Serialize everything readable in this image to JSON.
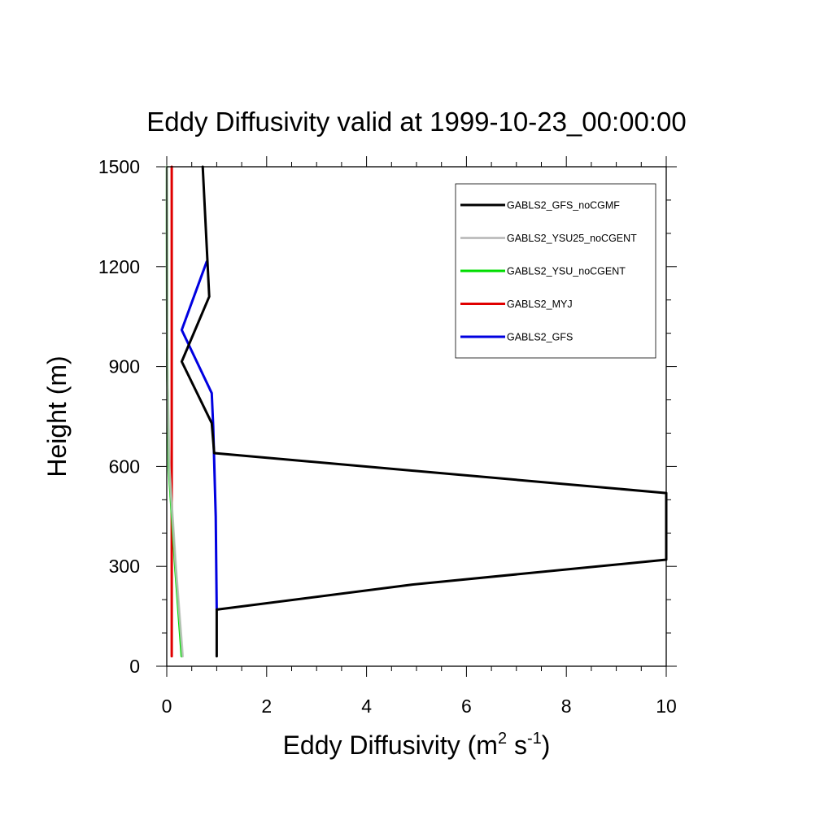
{
  "chart_data": {
    "type": "line",
    "title": "Eddy Diffusivity valid at 1999-10-23_00:00:00",
    "xlabel": {
      "base": "Eddy Diffusivity (m",
      "sup1": "2",
      "mid": " s",
      "sup2": "-1",
      "end": ")"
    },
    "ylabel": "Height (m)",
    "xlim": [
      0,
      10
    ],
    "ylim": [
      0,
      1500
    ],
    "x_ticks": [
      "0",
      "2",
      "4",
      "6",
      "8",
      "10"
    ],
    "x_tick_values": [
      0,
      2,
      4,
      6,
      8,
      10
    ],
    "y_ticks": [
      "0",
      "300",
      "600",
      "900",
      "1200",
      "1500"
    ],
    "y_tick_values": [
      0,
      300,
      600,
      900,
      1200,
      1500
    ],
    "legend_position": "top-right",
    "series": [
      {
        "name": "GABLS2_GFS_noCGMF",
        "color": "#000000",
        "points": [
          [
            1.0,
            30
          ],
          [
            1.0,
            170
          ],
          [
            4.9,
            245
          ],
          [
            10.0,
            320
          ],
          [
            10.0,
            520
          ],
          [
            0.95,
            640
          ],
          [
            0.9,
            730
          ],
          [
            0.3,
            915
          ],
          [
            0.85,
            1110
          ],
          [
            0.72,
            1500
          ]
        ]
      },
      {
        "name": "GABLS2_YSU25_noCGENT",
        "color": "#c0c0c0",
        "points": [
          [
            0.32,
            30
          ],
          [
            0.18,
            300
          ],
          [
            0.05,
            600
          ],
          [
            0.01,
            900
          ],
          [
            0.0,
            1500
          ]
        ]
      },
      {
        "name": "GABLS2_YSU_noCGENT",
        "color": "#00dd00",
        "points": [
          [
            0.3,
            30
          ],
          [
            0.17,
            300
          ],
          [
            0.04,
            600
          ],
          [
            0.01,
            900
          ],
          [
            0.0,
            1500
          ]
        ]
      },
      {
        "name": "GABLS2_MYJ",
        "color": "#e00000",
        "points": [
          [
            0.1,
            30
          ],
          [
            0.1,
            1500
          ]
        ]
      },
      {
        "name": "GABLS2_GFS",
        "color": "#0000e0",
        "points": [
          [
            1.0,
            170
          ],
          [
            0.98,
            450
          ],
          [
            0.93,
            720
          ],
          [
            0.9,
            820
          ],
          [
            0.3,
            1010
          ],
          [
            0.8,
            1215
          ]
        ]
      }
    ]
  }
}
